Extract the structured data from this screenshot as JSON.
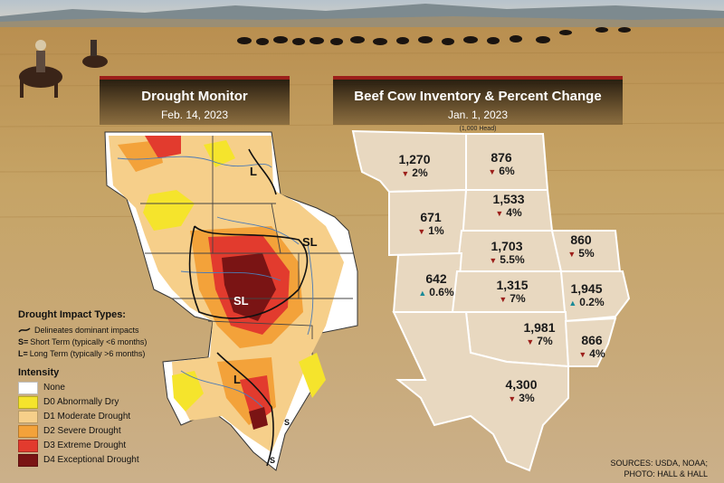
{
  "drought_panel": {
    "title": "Drought Monitor",
    "date": "Feb. 14, 2023",
    "map_labels": [
      "L",
      "SL",
      "SL",
      "L",
      "S",
      "S"
    ],
    "legend": {
      "impact_title": "Drought Impact Types:",
      "impact_line": "Delineates dominant impacts",
      "short_key": "S=",
      "short_text": "Short Term (typically <6 months)",
      "long_key": "L=",
      "long_text": "Long Term (typically >6 months)",
      "intensity_title": "Intensity",
      "items": [
        {
          "label": "None",
          "color": "#ffffff"
        },
        {
          "label": "D0 Abnormally Dry",
          "color": "#f5e42c"
        },
        {
          "label": "D1 Moderate Drought",
          "color": "#f6cf8a"
        },
        {
          "label": "D2 Severe Drought",
          "color": "#f3a23a"
        },
        {
          "label": "D3 Extreme Drought",
          "color": "#e23b2e"
        },
        {
          "label": "D4 Exceptional Drought",
          "color": "#7a1414"
        }
      ]
    }
  },
  "inventory_panel": {
    "title": "Beef Cow Inventory & Percent Change",
    "date": "Jan. 1, 2023",
    "unit": "(1,000 Head)",
    "states": [
      {
        "value": "1,270",
        "change": "2%",
        "direction": "down"
      },
      {
        "value": "876",
        "change": "6%",
        "direction": "down"
      },
      {
        "value": "1,533",
        "change": "4%",
        "direction": "down"
      },
      {
        "value": "671",
        "change": "1%",
        "direction": "down"
      },
      {
        "value": "1,703",
        "change": "5.5%",
        "direction": "down"
      },
      {
        "value": "860",
        "change": "5%",
        "direction": "down"
      },
      {
        "value": "642",
        "change": "0.6%",
        "direction": "up"
      },
      {
        "value": "1,315",
        "change": "7%",
        "direction": "down"
      },
      {
        "value": "1,945",
        "change": "0.2%",
        "direction": "up"
      },
      {
        "value": "1,981",
        "change": "7%",
        "direction": "down"
      },
      {
        "value": "866",
        "change": "4%",
        "direction": "down"
      },
      {
        "value": "4,300",
        "change": "3%",
        "direction": "down"
      }
    ],
    "colors": {
      "map_fill": "#e8d8c0",
      "map_border": "#ffffff",
      "down": "#9c1f1a",
      "up": "#1a8a97"
    }
  },
  "sources": {
    "line1": "SOURCES: USDA, NOAA;",
    "line2": "PHOTO: HALL & HALL"
  }
}
